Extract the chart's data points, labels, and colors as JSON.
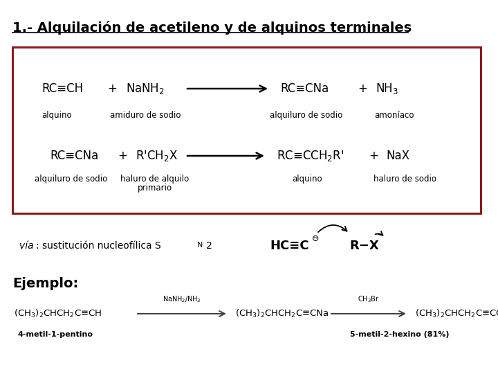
{
  "title": "1.- Alquilación de acetileno y de alquinos terminales",
  "bg_color": "#ffffff",
  "box_border_color": "#8B1A1A",
  "title_fontsize": 14,
  "label_fontsize": 8.5,
  "ejemplo_fontsize": 14,
  "chem_fontsize": 12,
  "reaction1_label1": "alquino",
  "reaction1_label2": "amiduro de sodio",
  "reaction1_label3": "alquiluro de sodio",
  "reaction1_label4": "amoníaco",
  "reaction2_label1": "alquiluro de sodio",
  "reaction2_label2_1": "haluro de alquilo",
  "reaction2_label2_2": "primario",
  "reaction2_label3": "alquino",
  "reaction2_label4": "haluro de sodio",
  "ejemplo_title": "Ejemplo:",
  "ex_label1": "4-metil-1-pentino",
  "ex_label2": "5-metil-2-hexino (81%)"
}
